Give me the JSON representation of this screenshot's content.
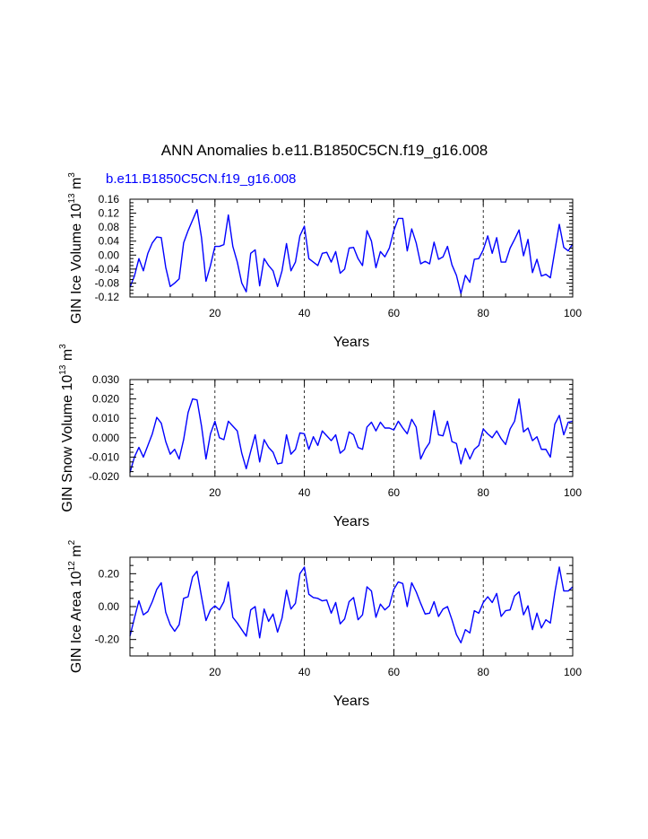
{
  "figure": {
    "title": "ANN Anomalies b.e11.B1850C5CN.f19_g16.008",
    "subtitle": "b.e11.B1850C5CN.f19_g16.008",
    "line_color": "#0000ff",
    "axis_color": "#000000"
  },
  "chart_data": [
    {
      "type": "line",
      "name": "ice-volume",
      "xlabel": "Years",
      "ylabel": {
        "base": "GIN Ice Volume 10",
        "exp": "13",
        "unit": " m",
        "unit_exp": "3"
      },
      "xlim": [
        1,
        100
      ],
      "ylim": [
        -0.12,
        0.16
      ],
      "xticks": [
        20,
        40,
        60,
        80,
        100
      ],
      "xgrid": [
        20,
        40,
        60,
        80
      ],
      "yticks": [
        -0.12,
        -0.08,
        -0.04,
        0.0,
        0.04,
        0.08,
        0.12,
        0.16
      ],
      "ytick_labels": [
        "-0.12",
        "-0.08",
        "-0.04",
        "0.00",
        "0.04",
        "0.08",
        "0.12",
        "0.16"
      ],
      "x": [
        1,
        2,
        3,
        4,
        5,
        6,
        7,
        8,
        9,
        10,
        11,
        12,
        13,
        14,
        15,
        16,
        17,
        18,
        19,
        20,
        21,
        22,
        23,
        24,
        25,
        26,
        27,
        28,
        29,
        30,
        31,
        32,
        33,
        34,
        35,
        36,
        37,
        38,
        39,
        40,
        41,
        42,
        43,
        44,
        45,
        46,
        47,
        48,
        49,
        50,
        51,
        52,
        53,
        54,
        55,
        56,
        57,
        58,
        59,
        60,
        61,
        62,
        63,
        64,
        65,
        66,
        67,
        68,
        69,
        70,
        71,
        72,
        73,
        74,
        75,
        76,
        77,
        78,
        79,
        80,
        81,
        82,
        83,
        84,
        85,
        86,
        87,
        88,
        89,
        90,
        91,
        92,
        93,
        94,
        95,
        96,
        97,
        98,
        99,
        100
      ],
      "values": [
        -0.092,
        -0.06,
        -0.01,
        -0.045,
        0.005,
        0.035,
        0.052,
        0.05,
        -0.035,
        -0.09,
        -0.08,
        -0.068,
        0.035,
        0.07,
        0.1,
        0.13,
        0.05,
        -0.075,
        -0.03,
        0.025,
        0.025,
        0.03,
        0.115,
        0.025,
        -0.02,
        -0.08,
        -0.105,
        0.005,
        0.015,
        -0.088,
        -0.01,
        -0.03,
        -0.045,
        -0.09,
        -0.045,
        0.033,
        -0.045,
        -0.02,
        0.055,
        0.083,
        -0.01,
        -0.02,
        -0.03,
        0.005,
        0.008,
        -0.02,
        0.01,
        -0.052,
        -0.04,
        0.02,
        0.022,
        -0.01,
        -0.03,
        0.07,
        0.04,
        -0.036,
        0.01,
        -0.005,
        0.02,
        0.07,
        0.105,
        0.105,
        0.012,
        0.075,
        0.035,
        -0.025,
        -0.018,
        -0.025,
        0.037,
        -0.012,
        -0.005,
        0.025,
        -0.028,
        -0.058,
        -0.11,
        -0.058,
        -0.078,
        -0.012,
        -0.01,
        0.015,
        0.055,
        0.005,
        0.05,
        -0.02,
        -0.02,
        0.02,
        0.045,
        0.072,
        -0.002,
        0.045,
        -0.05,
        -0.012,
        -0.06,
        -0.055,
        -0.065,
        0.012,
        0.088,
        0.022,
        0.012,
        0.032
      ]
    },
    {
      "type": "line",
      "name": "snow-volume",
      "xlabel": "Years",
      "ylabel": {
        "base": "GIN Snow Volume 10",
        "exp": "13",
        "unit": " m",
        "unit_exp": "3"
      },
      "xlim": [
        1,
        100
      ],
      "ylim": [
        -0.02,
        0.03
      ],
      "xticks": [
        20,
        40,
        60,
        80,
        100
      ],
      "xgrid": [
        20,
        40,
        60,
        80
      ],
      "yticks": [
        -0.02,
        -0.01,
        0.0,
        0.01,
        0.02,
        0.03
      ],
      "ytick_labels": [
        "-0.020",
        "-0.010",
        "0.000",
        "0.010",
        "0.020",
        "0.030"
      ],
      "x": [
        1,
        2,
        3,
        4,
        5,
        6,
        7,
        8,
        9,
        10,
        11,
        12,
        13,
        14,
        15,
        16,
        17,
        18,
        19,
        20,
        21,
        22,
        23,
        24,
        25,
        26,
        27,
        28,
        29,
        30,
        31,
        32,
        33,
        34,
        35,
        36,
        37,
        38,
        39,
        40,
        41,
        42,
        43,
        44,
        45,
        46,
        47,
        48,
        49,
        50,
        51,
        52,
        53,
        54,
        55,
        56,
        57,
        58,
        59,
        60,
        61,
        62,
        63,
        64,
        65,
        66,
        67,
        68,
        69,
        70,
        71,
        72,
        73,
        74,
        75,
        76,
        77,
        78,
        79,
        80,
        81,
        82,
        83,
        84,
        85,
        86,
        87,
        88,
        89,
        90,
        91,
        92,
        93,
        94,
        95,
        96,
        97,
        98,
        99,
        100
      ],
      "values": [
        -0.018,
        -0.01,
        -0.005,
        -0.01,
        -0.004,
        0.002,
        0.0105,
        0.0075,
        -0.002,
        -0.0085,
        -0.006,
        -0.011,
        -0.001,
        0.013,
        0.02,
        0.0195,
        0.006,
        -0.011,
        0.002,
        0.0085,
        0.0,
        -0.001,
        0.0085,
        0.006,
        0.0035,
        -0.008,
        -0.016,
        -0.007,
        0.0015,
        -0.0125,
        -0.001,
        -0.005,
        -0.0075,
        -0.0135,
        -0.013,
        0.0015,
        -0.0085,
        -0.006,
        0.0025,
        0.002,
        -0.006,
        0.0005,
        -0.004,
        0.0035,
        0.001,
        -0.0015,
        0.0015,
        -0.008,
        -0.006,
        0.003,
        0.0015,
        -0.005,
        -0.006,
        0.0055,
        0.008,
        0.0035,
        0.008,
        0.005,
        0.005,
        0.004,
        0.0085,
        0.005,
        0.002,
        0.0095,
        0.0055,
        -0.011,
        -0.006,
        -0.0025,
        0.014,
        0.0015,
        0.001,
        0.0085,
        -0.002,
        -0.003,
        -0.0135,
        -0.0055,
        -0.011,
        -0.006,
        -0.004,
        0.0045,
        0.002,
        0.0,
        0.0035,
        -0.0005,
        -0.0035,
        0.0045,
        0.0085,
        0.02,
        0.003,
        0.005,
        -0.0015,
        0.0005,
        -0.006,
        -0.006,
        -0.01,
        0.007,
        0.0115,
        0.0015,
        0.008,
        0.0085
      ]
    },
    {
      "type": "line",
      "name": "ice-area",
      "xlabel": "Years",
      "ylabel": {
        "base": "GIN Ice Area 10",
        "exp": "12",
        "unit": " m",
        "unit_exp": "2"
      },
      "xlim": [
        1,
        100
      ],
      "ylim": [
        -0.3,
        0.3
      ],
      "xticks": [
        20,
        40,
        60,
        80,
        100
      ],
      "xgrid": [
        20,
        40,
        60,
        80
      ],
      "yticks": [
        -0.2,
        0.0,
        0.2
      ],
      "ytick_labels": [
        "-0.20",
        "0.00",
        "0.20"
      ],
      "x": [
        1,
        2,
        3,
        4,
        5,
        6,
        7,
        8,
        9,
        10,
        11,
        12,
        13,
        14,
        15,
        16,
        17,
        18,
        19,
        20,
        21,
        22,
        23,
        24,
        25,
        26,
        27,
        28,
        29,
        30,
        31,
        32,
        33,
        34,
        35,
        36,
        37,
        38,
        39,
        40,
        41,
        42,
        43,
        44,
        45,
        46,
        47,
        48,
        49,
        50,
        51,
        52,
        53,
        54,
        55,
        56,
        57,
        58,
        59,
        60,
        61,
        62,
        63,
        64,
        65,
        66,
        67,
        68,
        69,
        70,
        71,
        72,
        73,
        74,
        75,
        76,
        77,
        78,
        79,
        80,
        81,
        82,
        83,
        84,
        85,
        86,
        87,
        88,
        89,
        90,
        91,
        92,
        93,
        94,
        95,
        96,
        97,
        98,
        99,
        100
      ],
      "values": [
        -0.18,
        -0.07,
        0.035,
        -0.05,
        -0.03,
        0.03,
        0.105,
        0.145,
        -0.035,
        -0.11,
        -0.15,
        -0.11,
        0.05,
        0.06,
        0.18,
        0.215,
        0.06,
        -0.085,
        -0.02,
        0.005,
        -0.02,
        0.03,
        0.15,
        -0.065,
        -0.1,
        -0.14,
        -0.18,
        -0.02,
        0.0,
        -0.19,
        -0.015,
        -0.09,
        -0.045,
        -0.155,
        -0.07,
        0.1,
        -0.015,
        0.02,
        0.2,
        0.24,
        0.075,
        0.055,
        0.05,
        0.035,
        0.04,
        -0.04,
        0.025,
        -0.105,
        -0.075,
        0.03,
        0.055,
        -0.08,
        -0.05,
        0.12,
        0.095,
        -0.065,
        0.015,
        -0.02,
        0.005,
        0.105,
        0.15,
        0.14,
        0.0,
        0.145,
        0.09,
        0.02,
        -0.045,
        -0.04,
        0.03,
        -0.06,
        -0.015,
        0.0,
        -0.08,
        -0.17,
        -0.22,
        -0.14,
        -0.16,
        -0.025,
        -0.04,
        0.025,
        0.06,
        0.025,
        0.08,
        -0.06,
        -0.025,
        -0.02,
        0.065,
        0.09,
        -0.05,
        0.005,
        -0.14,
        -0.04,
        -0.13,
        -0.08,
        -0.1,
        0.085,
        0.24,
        0.095,
        0.095,
        0.12
      ]
    }
  ]
}
